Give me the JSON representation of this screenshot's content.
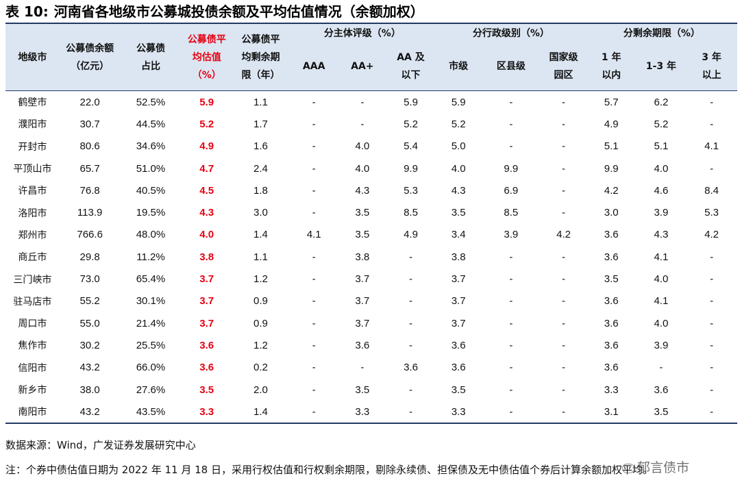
{
  "title": {
    "number": "表 10:",
    "text": "河南省各地级市公募城投债余额及平均估值情况（余额加权）"
  },
  "header": {
    "city": "地级市",
    "balance": [
      "公募债余额",
      "（亿元）"
    ],
    "share": [
      "公募债",
      "占比"
    ],
    "avg_val": [
      "公募债平",
      "均估值",
      "（%）"
    ],
    "avg_rem": [
      "公募债平",
      "均剩余期",
      "限（年）"
    ],
    "group_rating": "分主体评级（%）",
    "group_admin": "分行政级别（%）",
    "group_maturity": "分剩余期限（%）",
    "rating_cols": [
      [
        "AAA"
      ],
      [
        "AA+"
      ],
      [
        "AA 及",
        "以下"
      ]
    ],
    "admin_cols": [
      [
        "市级"
      ],
      [
        "区县级"
      ],
      [
        "国家级",
        "园区"
      ]
    ],
    "maturity_cols": [
      [
        "1 年",
        "以内"
      ],
      [
        "1-3 年"
      ],
      [
        "3 年",
        "以上"
      ]
    ]
  },
  "rows": [
    {
      "city": "鹤壁市",
      "vals": [
        "22.0",
        "52.5%",
        "5.9",
        "1.1",
        "-",
        "-",
        "5.9",
        "5.9",
        "-",
        "-",
        "5.7",
        "6.2",
        "-"
      ]
    },
    {
      "city": "濮阳市",
      "vals": [
        "30.7",
        "44.5%",
        "5.2",
        "1.7",
        "-",
        "-",
        "5.2",
        "5.2",
        "-",
        "-",
        "4.9",
        "5.2",
        "-"
      ]
    },
    {
      "city": "开封市",
      "vals": [
        "80.6",
        "34.6%",
        "4.9",
        "1.6",
        "-",
        "4.0",
        "5.4",
        "5.0",
        "-",
        "-",
        "5.1",
        "5.1",
        "4.1"
      ]
    },
    {
      "city": "平顶山市",
      "vals": [
        "65.7",
        "51.0%",
        "4.7",
        "2.4",
        "-",
        "4.0",
        "9.9",
        "4.0",
        "9.9",
        "-",
        "9.9",
        "4.0",
        "-"
      ]
    },
    {
      "city": "许昌市",
      "vals": [
        "76.8",
        "40.5%",
        "4.5",
        "1.8",
        "-",
        "4.3",
        "5.3",
        "4.3",
        "6.9",
        "-",
        "4.2",
        "4.6",
        "8.4"
      ]
    },
    {
      "city": "洛阳市",
      "vals": [
        "113.9",
        "19.5%",
        "4.3",
        "3.0",
        "-",
        "3.5",
        "8.5",
        "3.5",
        "8.5",
        "-",
        "3.0",
        "3.9",
        "5.3"
      ]
    },
    {
      "city": "郑州市",
      "vals": [
        "766.6",
        "48.0%",
        "4.0",
        "1.4",
        "4.1",
        "3.5",
        "4.9",
        "3.4",
        "3.9",
        "4.2",
        "3.6",
        "4.3",
        "4.2"
      ]
    },
    {
      "city": "商丘市",
      "vals": [
        "29.8",
        "11.2%",
        "3.8",
        "1.1",
        "-",
        "3.8",
        "-",
        "3.8",
        "-",
        "-",
        "3.6",
        "4.1",
        "-"
      ]
    },
    {
      "city": "三门峡市",
      "vals": [
        "73.0",
        "65.4%",
        "3.7",
        "1.2",
        "-",
        "3.7",
        "-",
        "3.7",
        "-",
        "-",
        "3.5",
        "4.0",
        "-"
      ]
    },
    {
      "city": "驻马店市",
      "vals": [
        "55.2",
        "30.1%",
        "3.7",
        "0.9",
        "-",
        "3.7",
        "-",
        "3.7",
        "-",
        "-",
        "3.6",
        "4.1",
        "-"
      ]
    },
    {
      "city": "周口市",
      "vals": [
        "55.0",
        "21.4%",
        "3.7",
        "0.9",
        "-",
        "3.7",
        "-",
        "3.7",
        "-",
        "-",
        "3.6",
        "4.0",
        "-"
      ]
    },
    {
      "city": "焦作市",
      "vals": [
        "30.2",
        "25.5%",
        "3.6",
        "1.2",
        "-",
        "3.6",
        "-",
        "3.6",
        "-",
        "-",
        "3.6",
        "3.9",
        "-"
      ]
    },
    {
      "city": "信阳市",
      "vals": [
        "43.2",
        "66.0%",
        "3.6",
        "0.2",
        "-",
        "-",
        "3.6",
        "3.6",
        "-",
        "-",
        "3.6",
        "-",
        "-"
      ]
    },
    {
      "city": "新乡市",
      "vals": [
        "38.0",
        "27.6%",
        "3.5",
        "2.0",
        "-",
        "3.5",
        "-",
        "3.5",
        "-",
        "-",
        "3.3",
        "3.6",
        "-"
      ]
    },
    {
      "city": "南阳市",
      "vals": [
        "43.2",
        "43.5%",
        "3.3",
        "1.4",
        "-",
        "3.3",
        "-",
        "3.3",
        "-",
        "-",
        "3.1",
        "3.5",
        "-"
      ]
    }
  ],
  "source": "数据来源：Wind，广发证券发展研究中心",
  "note": "注：个券中债估值日期为 2022 年 11 月 18 日，采用行权估值和行权剩余期限，剔除永续债、担保债及无中债估值个券后计算余额加权平均。",
  "watermark": "郁言债市",
  "colors": {
    "header_bg": "#DCE6F2",
    "highlight_red": "#E60012",
    "rule_navy": "#1F3864"
  }
}
